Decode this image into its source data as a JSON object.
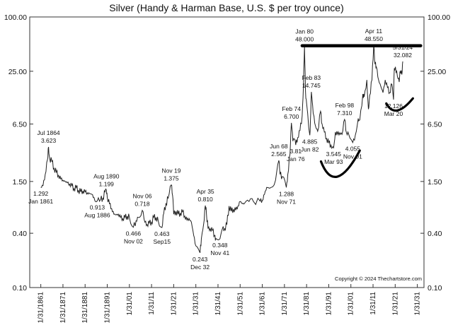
{
  "chart_data": {
    "type": "line",
    "title": "Silver (Handy & Harman Base, U.S. $ per troy ounce)",
    "scale": "log",
    "ylim": [
      0.1,
      100
    ],
    "yticks": [
      0.1,
      0.4,
      1.5,
      6.5,
      25,
      100
    ],
    "ytick_labels": [
      "0.10",
      "0.40",
      "1.50",
      "6.50",
      "25.00",
      "100.00"
    ],
    "xlim": [
      1856,
      2034
    ],
    "xticks": [
      {
        "x": 1861,
        "label": "1/31/1861"
      },
      {
        "x": 1871,
        "label": "1/31/1871"
      },
      {
        "x": 1881,
        "label": "1/31/1881"
      },
      {
        "x": 1891,
        "label": "1/31/1891"
      },
      {
        "x": 1901,
        "label": "1/31/01"
      },
      {
        "x": 1911,
        "label": "1/31/11"
      },
      {
        "x": 1921,
        "label": "1/31/21"
      },
      {
        "x": 1931,
        "label": "1/31/31"
      },
      {
        "x": 1941,
        "label": "1/31/41"
      },
      {
        "x": 1951,
        "label": "1/31/51"
      },
      {
        "x": 1961,
        "label": "1/31/61"
      },
      {
        "x": 1971,
        "label": "1/31/71"
      },
      {
        "x": 1981,
        "label": "1/31/81"
      },
      {
        "x": 1991,
        "label": "1/31/91"
      },
      {
        "x": 2001,
        "label": "1/31/01"
      },
      {
        "x": 2011,
        "label": "1/31/11"
      },
      {
        "x": 2021,
        "label": "1/31/21"
      },
      {
        "x": 2031,
        "label": "1/31/31"
      }
    ],
    "series": [
      {
        "name": "Silver price",
        "points": [
          [
            1861.0,
            1.292
          ],
          [
            1862.0,
            1.35
          ],
          [
            1863.0,
            1.8
          ],
          [
            1864.0,
            2.6
          ],
          [
            1864.5,
            3.623
          ],
          [
            1865.0,
            2.7
          ],
          [
            1866.0,
            2.5
          ],
          [
            1867.0,
            2.1
          ],
          [
            1868.0,
            1.9
          ],
          [
            1869.0,
            1.75
          ],
          [
            1870.0,
            1.6
          ],
          [
            1871.0,
            1.55
          ],
          [
            1872.0,
            1.5
          ],
          [
            1873.0,
            1.45
          ],
          [
            1874.0,
            1.4
          ],
          [
            1875.0,
            1.35
          ],
          [
            1876.0,
            1.25
          ],
          [
            1877.0,
            1.28
          ],
          [
            1878.0,
            1.2
          ],
          [
            1879.0,
            1.15
          ],
          [
            1880.0,
            1.18
          ],
          [
            1881.0,
            1.15
          ],
          [
            1882.0,
            1.12
          ],
          [
            1883.0,
            1.1
          ],
          [
            1884.0,
            1.08
          ],
          [
            1885.0,
            1.0
          ],
          [
            1886.5,
            0.913
          ],
          [
            1888.0,
            0.95
          ],
          [
            1889.0,
            0.98
          ],
          [
            1890.0,
            1.15
          ],
          [
            1890.6,
            1.199
          ],
          [
            1891.0,
            1.0
          ],
          [
            1892.0,
            0.85
          ],
          [
            1893.0,
            0.75
          ],
          [
            1894.0,
            0.65
          ],
          [
            1895.0,
            0.64
          ],
          [
            1896.0,
            0.65
          ],
          [
            1897.0,
            0.6
          ],
          [
            1898.0,
            0.58
          ],
          [
            1899.0,
            0.6
          ],
          [
            1900.0,
            0.62
          ],
          [
            1901.0,
            0.6
          ],
          [
            1902.8,
            0.466
          ],
          [
            1904.0,
            0.55
          ],
          [
            1905.0,
            0.6
          ],
          [
            1906.8,
            0.718
          ],
          [
            1908.0,
            0.53
          ],
          [
            1909.0,
            0.5
          ],
          [
            1910.0,
            0.52
          ],
          [
            1911.0,
            0.53
          ],
          [
            1912.0,
            0.6
          ],
          [
            1913.0,
            0.6
          ],
          [
            1914.0,
            0.55
          ],
          [
            1915.7,
            0.463
          ],
          [
            1916.5,
            0.66
          ],
          [
            1917.5,
            0.85
          ],
          [
            1918.5,
            0.98
          ],
          [
            1919.9,
            1.375
          ],
          [
            1920.5,
            1.05
          ],
          [
            1921.0,
            0.65
          ],
          [
            1922.0,
            0.7
          ],
          [
            1923.0,
            0.65
          ],
          [
            1924.0,
            0.67
          ],
          [
            1925.0,
            0.69
          ],
          [
            1926.0,
            0.62
          ],
          [
            1927.0,
            0.56
          ],
          [
            1928.0,
            0.58
          ],
          [
            1929.0,
            0.53
          ],
          [
            1930.0,
            0.38
          ],
          [
            1931.0,
            0.29
          ],
          [
            1932.9,
            0.243
          ],
          [
            1933.5,
            0.35
          ],
          [
            1934.5,
            0.5
          ],
          [
            1935.3,
            0.81
          ],
          [
            1935.8,
            0.65
          ],
          [
            1936.5,
            0.45
          ],
          [
            1937.5,
            0.45
          ],
          [
            1938.5,
            0.43
          ],
          [
            1939.5,
            0.38
          ],
          [
            1940.0,
            0.35
          ],
          [
            1941.9,
            0.348
          ],
          [
            1943.0,
            0.45
          ],
          [
            1944.0,
            0.45
          ],
          [
            1945.0,
            0.5
          ],
          [
            1946.0,
            0.8
          ],
          [
            1947.0,
            0.7
          ],
          [
            1948.0,
            0.74
          ],
          [
            1949.0,
            0.72
          ],
          [
            1950.0,
            0.8
          ],
          [
            1951.0,
            0.9
          ],
          [
            1952.0,
            0.85
          ],
          [
            1953.0,
            0.86
          ],
          [
            1955.0,
            0.9
          ],
          [
            1957.0,
            0.9
          ],
          [
            1960.0,
            0.91
          ],
          [
            1961.0,
            0.93
          ],
          [
            1962.0,
            1.08
          ],
          [
            1963.0,
            1.29
          ],
          [
            1965.0,
            1.29
          ],
          [
            1967.0,
            1.55
          ],
          [
            1968.45,
            2.565
          ],
          [
            1969.0,
            1.8
          ],
          [
            1970.0,
            1.7
          ],
          [
            1971.85,
            1.288
          ],
          [
            1972.5,
            1.8
          ],
          [
            1973.5,
            3.0
          ],
          [
            1974.15,
            6.7
          ],
          [
            1974.8,
            4.2
          ],
          [
            1975.5,
            4.4
          ],
          [
            1976.1,
            3.81
          ],
          [
            1977.0,
            4.6
          ],
          [
            1978.0,
            5.5
          ],
          [
            1979.0,
            8.0
          ],
          [
            1979.6,
            18.0
          ],
          [
            1980.05,
            48.0
          ],
          [
            1980.5,
            15.0
          ],
          [
            1981.0,
            11.0
          ],
          [
            1982.45,
            4.885
          ],
          [
            1982.9,
            9.0
          ],
          [
            1983.15,
            14.745
          ],
          [
            1984.0,
            8.5
          ],
          [
            1985.0,
            6.2
          ],
          [
            1986.0,
            5.4
          ],
          [
            1987.3,
            9.0
          ],
          [
            1988.0,
            6.5
          ],
          [
            1989.0,
            5.3
          ],
          [
            1990.0,
            4.5
          ],
          [
            1991.0,
            4.0
          ],
          [
            1992.0,
            3.8
          ],
          [
            1993.2,
            3.545
          ],
          [
            1994.0,
            5.3
          ],
          [
            1995.0,
            5.0
          ],
          [
            1996.0,
            5.2
          ],
          [
            1997.0,
            5.0
          ],
          [
            1998.15,
            7.31
          ],
          [
            1999.0,
            5.2
          ],
          [
            2000.0,
            5.0
          ],
          [
            2001.85,
            4.055
          ],
          [
            2003.0,
            4.9
          ],
          [
            2004.3,
            7.5
          ],
          [
            2005.0,
            7.2
          ],
          [
            2006.4,
            14.0
          ],
          [
            2007.0,
            13.0
          ],
          [
            2008.2,
            20.0
          ],
          [
            2008.9,
            9.5
          ],
          [
            2009.5,
            13.5
          ],
          [
            2010.5,
            20.0
          ],
          [
            2011.3,
            48.55
          ],
          [
            2011.9,
            30.0
          ],
          [
            2012.5,
            28.0
          ],
          [
            2013.5,
            20.0
          ],
          [
            2014.5,
            17.0
          ],
          [
            2015.5,
            14.5
          ],
          [
            2016.5,
            20.0
          ],
          [
            2017.5,
            16.5
          ],
          [
            2018.5,
            14.5
          ],
          [
            2019.5,
            18.0
          ],
          [
            2020.25,
            12.126
          ],
          [
            2020.6,
            27.0
          ],
          [
            2021.1,
            28.0
          ],
          [
            2022.0,
            22.0
          ],
          [
            2022.8,
            19.0
          ],
          [
            2023.3,
            25.0
          ],
          [
            2024.0,
            23.0
          ],
          [
            2024.41,
            32.082
          ]
        ]
      }
    ],
    "annotations": [
      {
        "lines": [
          "Jul 1864",
          "3.623"
        ],
        "x": 1864.5,
        "y": 3.623,
        "pos": "above"
      },
      {
        "lines": [
          "1.292",
          "Jan 1861"
        ],
        "x": 1861.0,
        "y": 1.292,
        "pos": "below"
      },
      {
        "lines": [
          "Aug 1890",
          "1.199"
        ],
        "x": 1890.6,
        "y": 1.199,
        "pos": "above"
      },
      {
        "lines": [
          "0.913",
          "Aug 1886"
        ],
        "x": 1886.5,
        "y": 0.913,
        "pos": "below"
      },
      {
        "lines": [
          "Nov 06",
          "0.718"
        ],
        "x": 1906.8,
        "y": 0.718,
        "pos": "above"
      },
      {
        "lines": [
          "0.466",
          "Nov 02"
        ],
        "x": 1902.8,
        "y": 0.466,
        "pos": "below"
      },
      {
        "lines": [
          "0.463",
          "Sep15"
        ],
        "x": 1915.7,
        "y": 0.463,
        "pos": "below"
      },
      {
        "lines": [
          "Nov 19",
          "1.375"
        ],
        "x": 1919.9,
        "y": 1.375,
        "pos": "above"
      },
      {
        "lines": [
          "0.243",
          "Dec 32"
        ],
        "x": 1932.9,
        "y": 0.243,
        "pos": "below"
      },
      {
        "lines": [
          "Apr 35",
          "0.810"
        ],
        "x": 1935.3,
        "y": 0.81,
        "pos": "above"
      },
      {
        "lines": [
          "0.348",
          "Nov 41"
        ],
        "x": 1941.9,
        "y": 0.348,
        "pos": "below"
      },
      {
        "lines": [
          "Jun 68",
          "2.565"
        ],
        "x": 1968.45,
        "y": 2.565,
        "pos": "above"
      },
      {
        "lines": [
          "1.288",
          "Nov 71"
        ],
        "x": 1971.85,
        "y": 1.288,
        "pos": "below"
      },
      {
        "lines": [
          "Feb 74",
          "6.700"
        ],
        "x": 1974.15,
        "y": 6.7,
        "pos": "above"
      },
      {
        "lines": [
          "3.81",
          "Jan 76"
        ],
        "x": 1976.1,
        "y": 3.81,
        "pos": "below"
      },
      {
        "lines": [
          "Jan 80",
          "48.000"
        ],
        "x": 1980.05,
        "y": 48.0,
        "pos": "above"
      },
      {
        "lines": [
          "Feb 83",
          "14.745"
        ],
        "x": 1983.15,
        "y": 14.745,
        "pos": "above"
      },
      {
        "lines": [
          "4.885",
          "Jun 82"
        ],
        "x": 1982.45,
        "y": 4.885,
        "pos": "below"
      },
      {
        "lines": [
          "Feb 98",
          "7.310"
        ],
        "x": 1998.15,
        "y": 7.31,
        "pos": "above"
      },
      {
        "lines": [
          "3.545",
          "Mar 93"
        ],
        "x": 1993.2,
        "y": 3.545,
        "pos": "below"
      },
      {
        "lines": [
          "4.055",
          "Nov 01"
        ],
        "x": 2001.85,
        "y": 4.055,
        "pos": "below"
      },
      {
        "lines": [
          "Apr 11",
          "48.550"
        ],
        "x": 2011.3,
        "y": 48.55,
        "pos": "above"
      },
      {
        "lines": [
          "5/31/24",
          "32.082"
        ],
        "x": 2024.41,
        "y": 32.082,
        "pos": "above"
      },
      {
        "lines": [
          "12.126",
          "Mar 20"
        ],
        "x": 2020.25,
        "y": 12.126,
        "pos": "below"
      }
    ],
    "resistance_line": {
      "from_x": 1979.0,
      "to_x": 2032.5,
      "y": 48.0
    },
    "support_arcs": [
      {
        "from": [
          1987.5,
          2.5
        ],
        "mid": [
          1995.0,
          1.7
        ],
        "to": [
          2005.0,
          3.3
        ]
      },
      {
        "from": [
          2017.0,
          11.0
        ],
        "mid": [
          2022.0,
          9.2
        ],
        "to": [
          2029.0,
          12.5
        ]
      }
    ],
    "copyright": "Copyright © 2024 Thechartstore.com"
  }
}
